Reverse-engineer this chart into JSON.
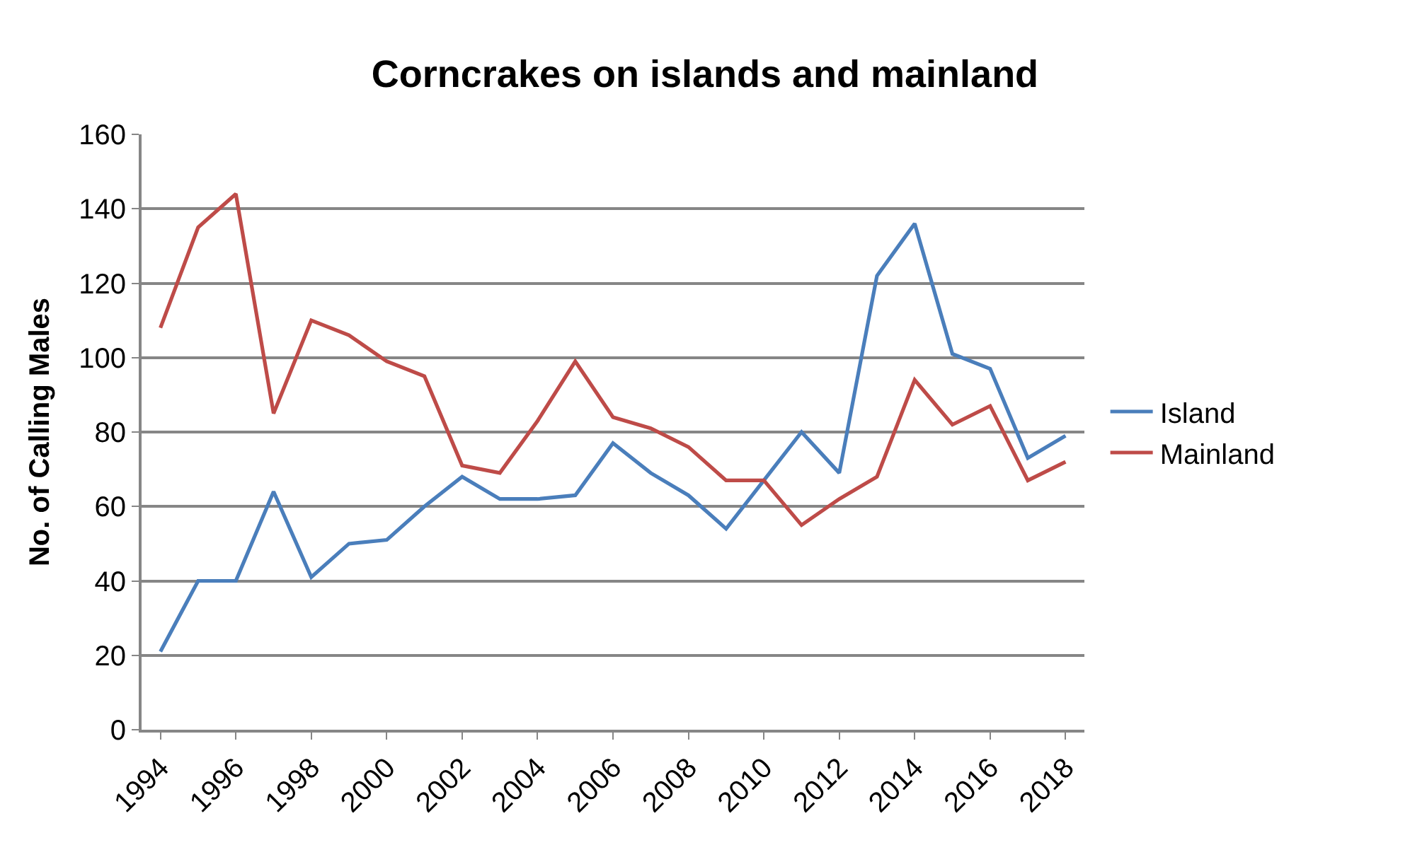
{
  "chart_data": {
    "type": "line",
    "title": "Corncrakes on islands and mainland",
    "ylabel": "No. of Calling Males",
    "x": [
      1994,
      1995,
      1996,
      1997,
      1998,
      1999,
      2000,
      2001,
      2002,
      2003,
      2004,
      2005,
      2006,
      2007,
      2008,
      2009,
      2010,
      2011,
      2012,
      2013,
      2014,
      2015,
      2016,
      2017,
      2018
    ],
    "series": [
      {
        "name": "Island",
        "color": "#4a7ebb",
        "values": [
          21,
          40,
          40,
          64,
          41,
          50,
          51,
          60,
          68,
          62,
          62,
          63,
          77,
          69,
          63,
          54,
          67,
          80,
          69,
          122,
          136,
          101,
          97,
          73,
          79
        ]
      },
      {
        "name": "Mainland",
        "color": "#be4b48",
        "values": [
          108,
          135,
          144,
          85,
          110,
          106,
          99,
          95,
          71,
          69,
          83,
          99,
          84,
          81,
          76,
          67,
          67,
          55,
          62,
          68,
          94,
          82,
          87,
          67,
          72
        ]
      }
    ],
    "xlim": [
      1993.5,
      2018.5
    ],
    "xticks": [
      1994,
      1996,
      1998,
      2000,
      2002,
      2004,
      2006,
      2008,
      2010,
      2012,
      2014,
      2016,
      2018
    ],
    "ylim": [
      0,
      160
    ],
    "yticks": [
      0,
      20,
      40,
      60,
      80,
      100,
      120,
      140,
      160
    ],
    "grid": "y",
    "legend": "right",
    "marker": "none",
    "line_style": "solid"
  }
}
